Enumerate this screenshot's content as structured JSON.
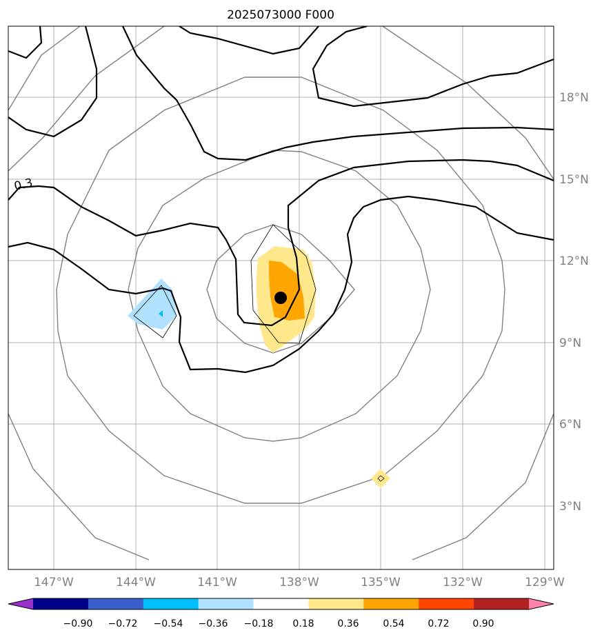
{
  "title": "2025073000 F000",
  "longitude_labels": [
    "147°W",
    "144°W",
    "141°W",
    "138°W",
    "135°W",
    "132°W",
    "129°W"
  ],
  "latitude_labels": [
    "18°N",
    "15°N",
    "12°N",
    "9°N",
    "6°N",
    "3°N"
  ],
  "contour_label": "0.3",
  "colorbar": {
    "tick_labels": [
      "−0.90",
      "−0.72",
      "−0.54",
      "−0.36",
      "−0.18",
      "0.18",
      "0.36",
      "0.54",
      "0.72",
      "0.90"
    ],
    "colors": [
      "#9932cc",
      "#00008b",
      "#3a5fcd",
      "#00bfff",
      "#b0e2ff",
      "#ffffff",
      "#ffe78c",
      "#ffa500",
      "#ff4500",
      "#b22222",
      "#ff82ab"
    ]
  },
  "map_features": {
    "storm_center": "black-dot",
    "range_rings": "gray-circles",
    "positive_anomaly_colors": [
      "#ffe78c",
      "#ffa500"
    ],
    "negative_anomaly_colors": [
      "#b0e2ff",
      "#00bfff"
    ]
  }
}
